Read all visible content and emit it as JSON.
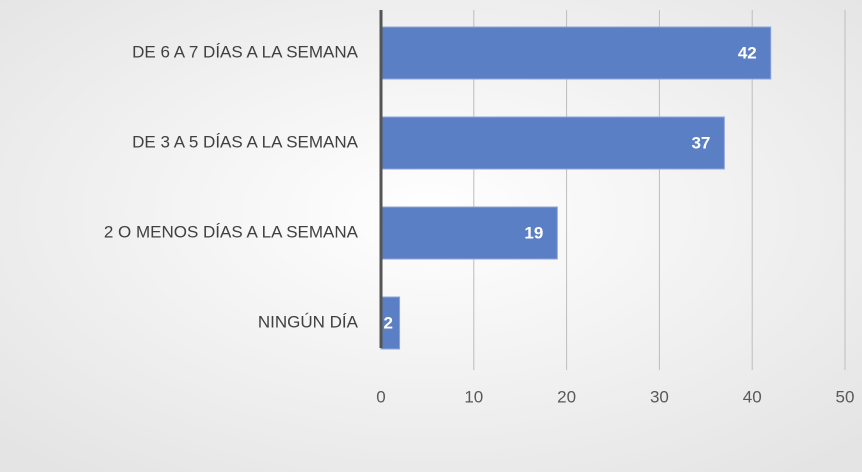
{
  "chart_data": {
    "type": "barh",
    "categories": [
      "DE 6 A 7 DÍAS A LA SEMANA",
      "DE 3  A 5 DÍAS A LA SEMANA",
      "2 O MENOS DÍAS A LA SEMANA",
      "NINGÚN DÍA"
    ],
    "values": [
      42,
      37,
      19,
      2
    ],
    "color": "#5b7fc4",
    "xlim": [
      0,
      50
    ],
    "xticks": [
      0,
      10,
      20,
      30,
      40,
      50
    ],
    "grid": true
  }
}
